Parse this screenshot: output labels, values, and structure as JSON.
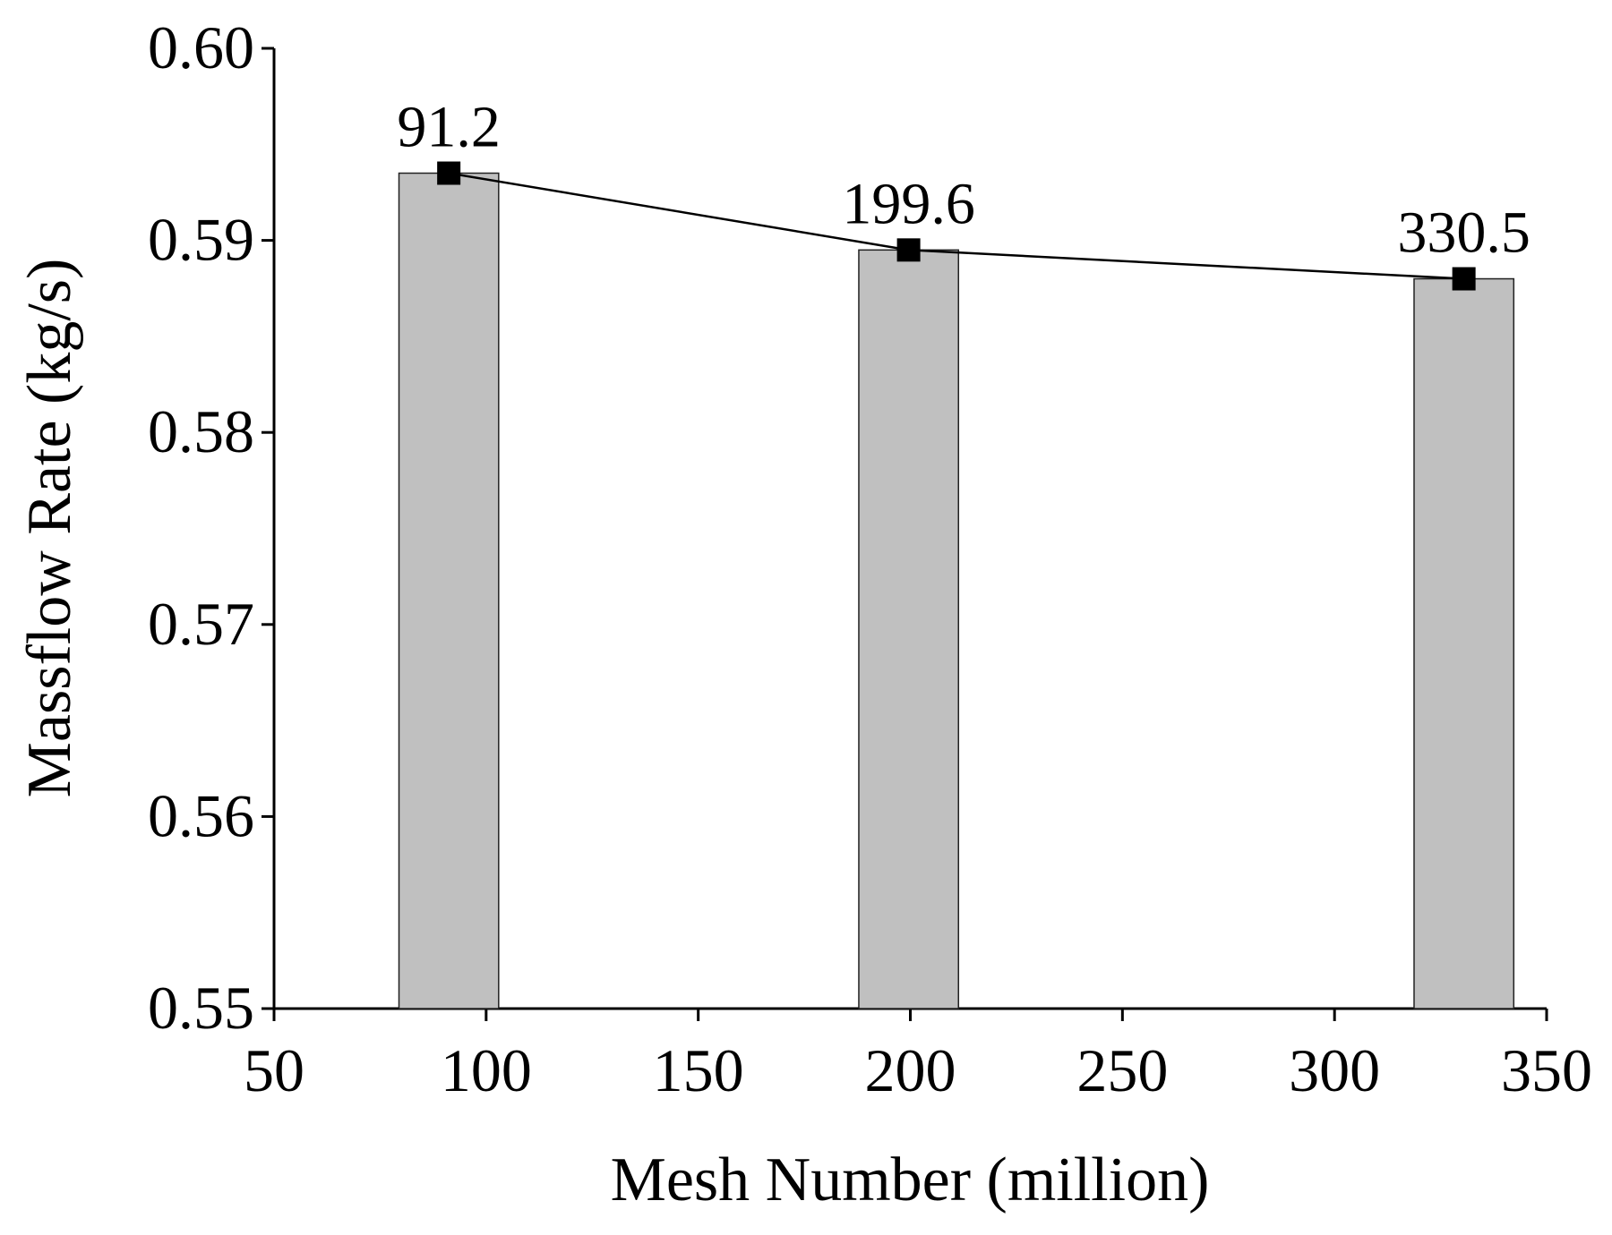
{
  "chart_data": {
    "type": "bar_line",
    "x": [
      91.2,
      199.6,
      330.5
    ],
    "values": [
      0.5935,
      0.5895,
      0.588
    ],
    "color": "#c0c0c0",
    "line_color": "#000000",
    "xlabel": "Mesh Number (million)",
    "ylabel": "Massflow Rate (kg/s)",
    "xlim": [
      50,
      350
    ],
    "xticks": [
      50,
      100,
      150,
      200,
      250,
      300,
      350
    ],
    "ylim": [
      0.55,
      0.6
    ],
    "yticks": [
      0.55,
      0.56,
      0.57,
      0.58,
      0.59,
      {
        "value": 0.6,
        "label": "0.60"
      }
    ]
  }
}
